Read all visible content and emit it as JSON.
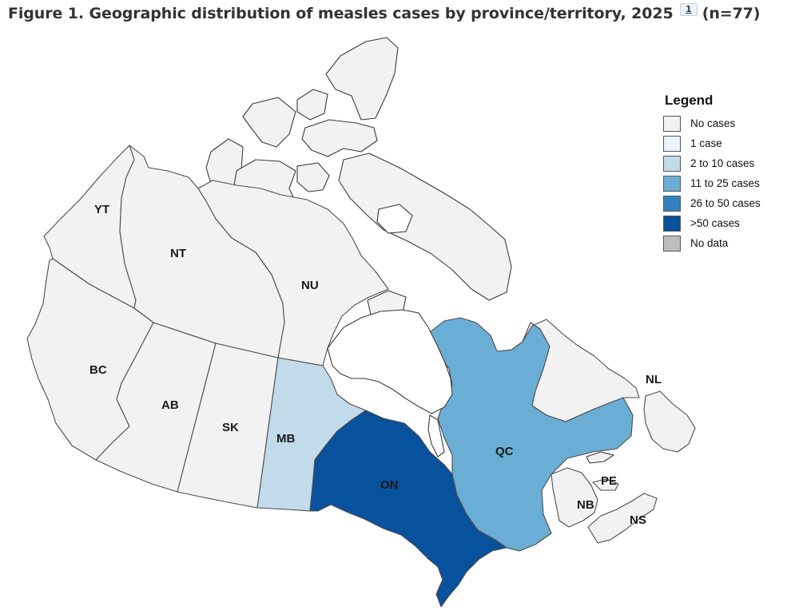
{
  "figure": {
    "title_main": "Figure 1. Geographic distribution of measles cases by province/territory, 2025",
    "footnote_ref": "1",
    "title_n": "(n=77)"
  },
  "legend": {
    "title": "Legend",
    "items": [
      {
        "label": "No cases",
        "color": "#f2f2f2"
      },
      {
        "label": "1 case",
        "color": "#eef3fb"
      },
      {
        "label": "2 to 10 cases",
        "color": "#c2dbea"
      },
      {
        "label": "11 to 25 cases",
        "color": "#6aaed6"
      },
      {
        "label": "26 to 50 cases",
        "color": "#3182bd"
      },
      {
        "label": ">50 cases",
        "color": "#08519c"
      },
      {
        "label": "No data",
        "color": "#bdbdbd"
      }
    ]
  },
  "regions": [
    {
      "code": "YT",
      "category": "No cases"
    },
    {
      "code": "NT",
      "category": "No cases"
    },
    {
      "code": "NU",
      "category": "No cases"
    },
    {
      "code": "BC",
      "category": "No cases"
    },
    {
      "code": "AB",
      "category": "No cases"
    },
    {
      "code": "SK",
      "category": "No cases"
    },
    {
      "code": "MB",
      "category": "2 to 10 cases"
    },
    {
      "code": "ON",
      "category": ">50 cases"
    },
    {
      "code": "QC",
      "category": "11 to 25 cases"
    },
    {
      "code": "NL",
      "category": "No cases"
    },
    {
      "code": "NB",
      "category": "No cases"
    },
    {
      "code": "PE",
      "category": "No cases"
    },
    {
      "code": "NS",
      "category": "No cases"
    }
  ]
}
